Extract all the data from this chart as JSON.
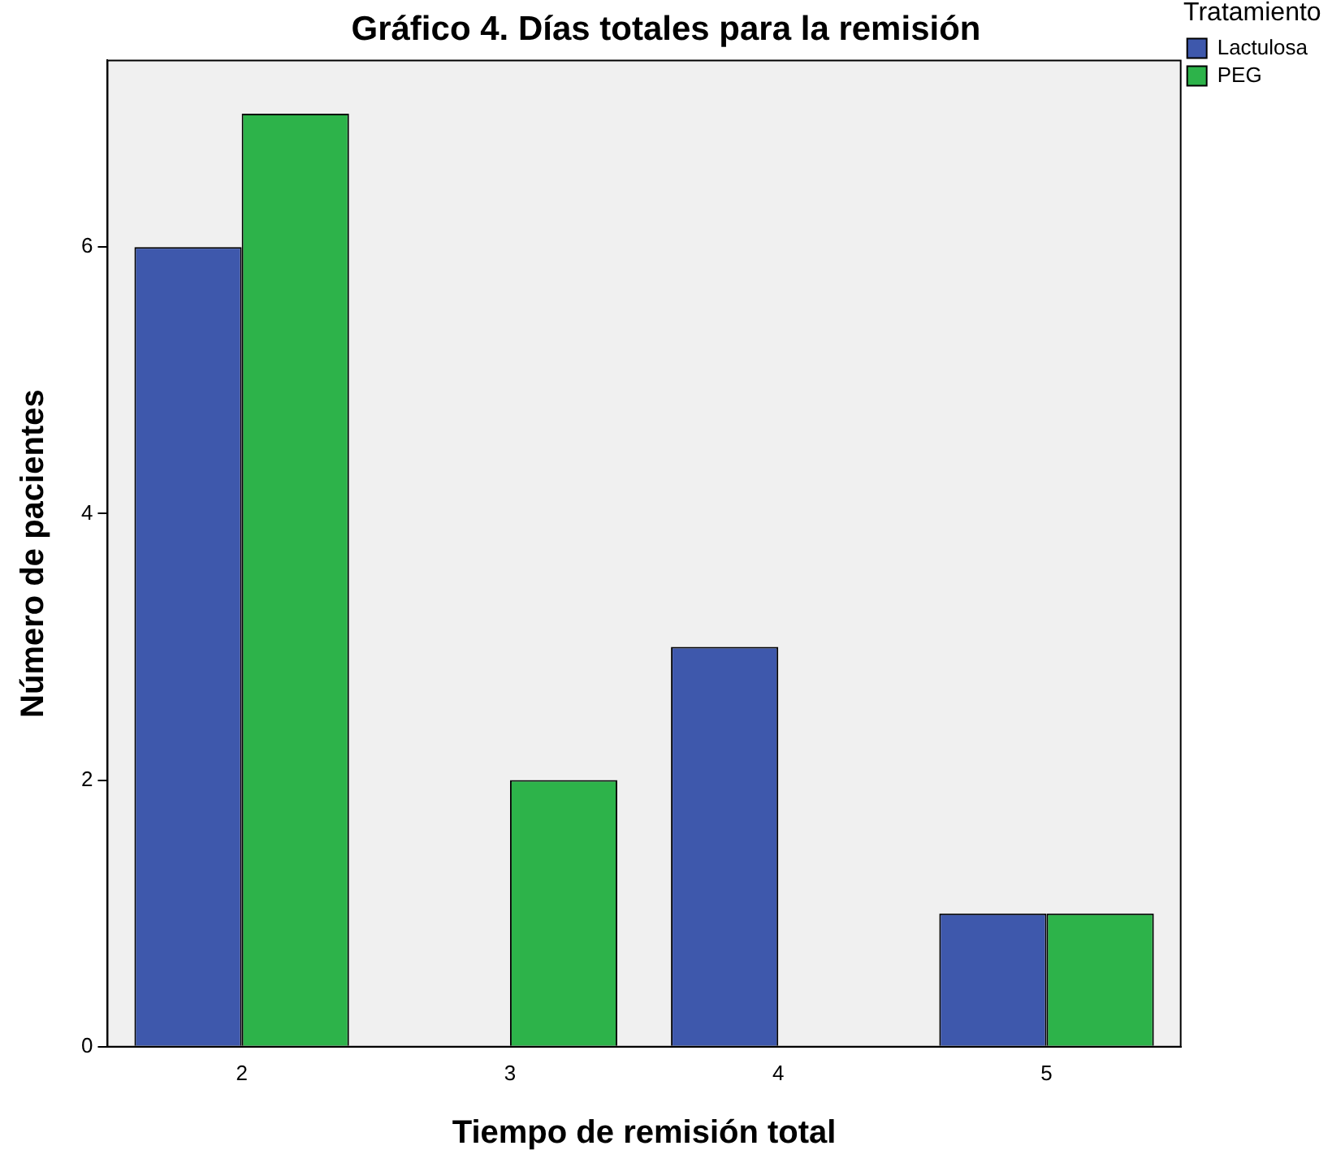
{
  "chart_data": {
    "type": "bar",
    "title": "Gráfico 4. Días totales para la remisión",
    "xlabel": "Tiempo de remisión total",
    "ylabel": "Número de pacientes",
    "legend_title": "Tratamiento",
    "categories": [
      "2",
      "3",
      "4",
      "5"
    ],
    "series": [
      {
        "name": "Lactulosa",
        "color": "#3e58ac",
        "values": [
          6,
          0,
          3,
          1
        ]
      },
      {
        "name": "PEG",
        "color": "#2db34a",
        "values": [
          7,
          2,
          0,
          1
        ]
      }
    ],
    "ylim": [
      0,
      7.4
    ],
    "yticks": [
      0,
      2,
      4,
      6
    ],
    "grid": false,
    "legend": "top right"
  }
}
